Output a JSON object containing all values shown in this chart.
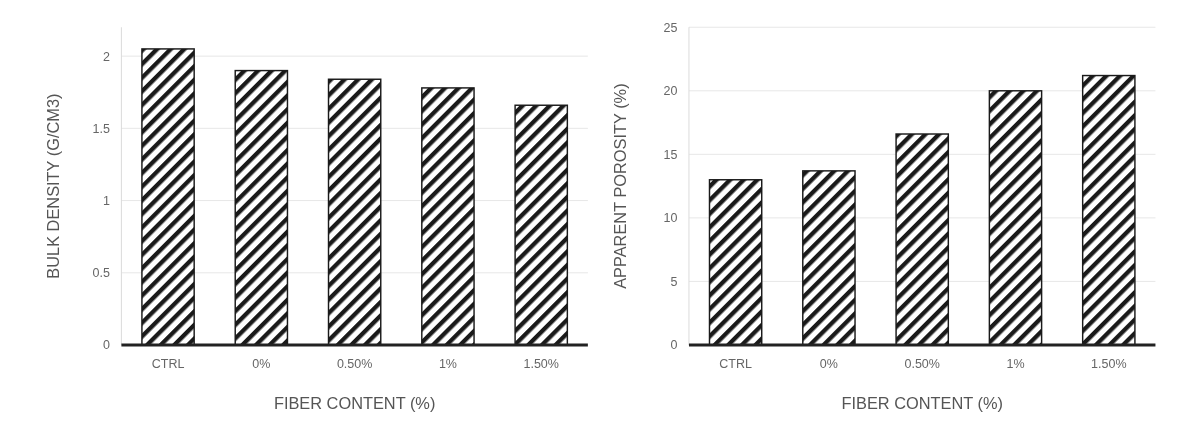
{
  "chart_data": [
    {
      "type": "bar",
      "xlabel": "FIBER CONTENT (%)",
      "ylabel": "BULK DENSITY (G/CM3)",
      "categories": [
        "CTRL",
        "0%",
        "0.50%",
        "1%",
        "1.50%"
      ],
      "values": [
        2.05,
        1.9,
        1.84,
        1.78,
        1.66
      ],
      "color": "#1a1a1a",
      "ylim": [
        0,
        2.2
      ],
      "yticks": [
        0,
        0.5,
        1,
        1.5,
        2
      ],
      "grid": "y"
    },
    {
      "type": "bar",
      "xlabel": "FIBER CONTENT (%)",
      "ylabel": "APPARENT POROSITY (%)",
      "categories": [
        "CTRL",
        "0%",
        "0.50%",
        "1%",
        "1.50%"
      ],
      "values": [
        13.0,
        13.7,
        16.6,
        20.0,
        21.2
      ],
      "color": "#1a1a1a",
      "ylim": [
        0,
        25
      ],
      "yticks": [
        0,
        5,
        10,
        15,
        20,
        25
      ],
      "grid": "y"
    }
  ]
}
